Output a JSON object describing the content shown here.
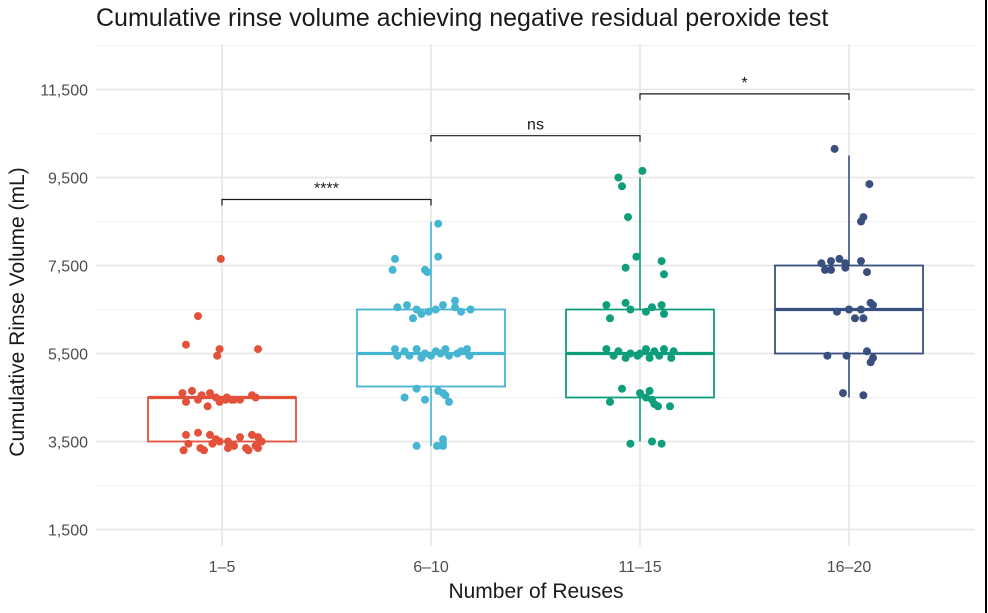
{
  "chart_data": {
    "type": "box",
    "title": "Cumulative rinse volume achieving negative residual peroxide test",
    "xlabel": "Number of Reuses",
    "ylabel": "Cumulative Rinse Volume (mL)",
    "ylim": [
      1200,
      12000
    ],
    "yticks": [
      1500,
      3500,
      5500,
      7500,
      9500,
      11500
    ],
    "ytick_labels": [
      "1,500",
      "3,500",
      "5,500",
      "7,500",
      "9,500",
      "11,500"
    ],
    "categories": [
      "1–5",
      "6–10",
      "11–15",
      "16–20"
    ],
    "grid": true,
    "series": [
      {
        "colour": "#e4513a",
        "box": {
          "q1": 3500,
          "median": 4500,
          "q3": 4500,
          "whisker_low": 3500,
          "whisker_high": 4500
        },
        "points": [
          [
            -0.01,
            7650
          ],
          [
            -0.2,
            6350
          ],
          [
            -0.3,
            5700
          ],
          [
            -0.02,
            5600
          ],
          [
            0.3,
            5600
          ],
          [
            -0.04,
            5450
          ],
          [
            -0.33,
            4600
          ],
          [
            -0.25,
            4650
          ],
          [
            -0.17,
            4550
          ],
          [
            -0.1,
            4600
          ],
          [
            -0.05,
            4500
          ],
          [
            0.03,
            4450
          ],
          [
            0.08,
            4450
          ],
          [
            0.15,
            4450
          ],
          [
            0.25,
            4550
          ],
          [
            0.28,
            4500
          ],
          [
            -0.3,
            4400
          ],
          [
            -0.2,
            4450
          ],
          [
            -0.12,
            4300
          ],
          [
            -0.02,
            4400
          ],
          [
            0.04,
            4500
          ],
          [
            0.1,
            4450
          ],
          [
            -0.3,
            3650
          ],
          [
            -0.2,
            3700
          ],
          [
            -0.1,
            3650
          ],
          [
            -0.05,
            3550
          ],
          [
            0.05,
            3500
          ],
          [
            0.15,
            3600
          ],
          [
            0.25,
            3650
          ],
          [
            0.3,
            3600
          ],
          [
            -0.28,
            3450
          ],
          [
            -0.18,
            3350
          ],
          [
            -0.08,
            3450
          ],
          [
            -0.02,
            3500
          ],
          [
            0.1,
            3400
          ],
          [
            0.2,
            3350
          ],
          [
            0.28,
            3400
          ],
          [
            -0.32,
            3300
          ],
          [
            -0.15,
            3300
          ],
          [
            0.05,
            3350
          ],
          [
            0.22,
            3300
          ],
          [
            0.3,
            3350
          ],
          [
            0.33,
            3500
          ]
        ]
      },
      {
        "colour": "#45b5d1",
        "box": {
          "q1": 4750,
          "median": 5500,
          "q3": 6500,
          "whisker_low": 3400,
          "whisker_high": 8500
        },
        "points": [
          [
            0.06,
            8450
          ],
          [
            -0.3,
            7650
          ],
          [
            0.06,
            7700
          ],
          [
            -0.05,
            7400
          ],
          [
            -0.03,
            7350
          ],
          [
            -0.32,
            7400
          ],
          [
            -0.2,
            6600
          ],
          [
            -0.28,
            6550
          ],
          [
            -0.12,
            6500
          ],
          [
            -0.08,
            6400
          ],
          [
            -0.02,
            6450
          ],
          [
            0.04,
            6500
          ],
          [
            0.1,
            6600
          ],
          [
            0.2,
            6550
          ],
          [
            0.25,
            6450
          ],
          [
            0.33,
            6500
          ],
          [
            -0.15,
            6300
          ],
          [
            0.2,
            6700
          ],
          [
            -0.3,
            5600
          ],
          [
            -0.22,
            5550
          ],
          [
            -0.12,
            5600
          ],
          [
            -0.05,
            5500
          ],
          [
            0.04,
            5550
          ],
          [
            0.12,
            5600
          ],
          [
            0.25,
            5550
          ],
          [
            0.3,
            5600
          ],
          [
            -0.28,
            5450
          ],
          [
            -0.18,
            5450
          ],
          [
            -0.08,
            5400
          ],
          [
            0.0,
            5450
          ],
          [
            0.08,
            5500
          ],
          [
            0.15,
            5450
          ],
          [
            0.22,
            5500
          ],
          [
            0.32,
            5450
          ],
          [
            -0.12,
            4700
          ],
          [
            0.06,
            4650
          ],
          [
            0.1,
            4600
          ],
          [
            -0.22,
            4500
          ],
          [
            0.12,
            4550
          ],
          [
            0.15,
            4400
          ],
          [
            -0.05,
            4450
          ],
          [
            0.1,
            3550
          ],
          [
            0.1,
            3450
          ],
          [
            0.1,
            3400
          ],
          [
            0.05,
            3400
          ],
          [
            -0.12,
            3400
          ]
        ]
      },
      {
        "colour": "#0e9e7b",
        "box": {
          "q1": 4500,
          "median": 5500,
          "q3": 6500,
          "whisker_low": 3500,
          "whisker_high": 9500
        },
        "points": [
          [
            0.02,
            9650
          ],
          [
            -0.18,
            9500
          ],
          [
            -0.15,
            9300
          ],
          [
            -0.1,
            8600
          ],
          [
            -0.03,
            7700
          ],
          [
            -0.12,
            7450
          ],
          [
            0.18,
            7600
          ],
          [
            0.2,
            7300
          ],
          [
            -0.28,
            6600
          ],
          [
            -0.12,
            6650
          ],
          [
            -0.08,
            6500
          ],
          [
            0.1,
            6550
          ],
          [
            0.18,
            6600
          ],
          [
            0.2,
            6400
          ],
          [
            -0.25,
            6300
          ],
          [
            0.05,
            6450
          ],
          [
            -0.28,
            5600
          ],
          [
            -0.18,
            5550
          ],
          [
            -0.08,
            5500
          ],
          [
            0.0,
            5500
          ],
          [
            0.05,
            5600
          ],
          [
            0.12,
            5550
          ],
          [
            0.2,
            5600
          ],
          [
            0.28,
            5550
          ],
          [
            -0.22,
            5450
          ],
          [
            -0.12,
            5400
          ],
          [
            -0.02,
            5450
          ],
          [
            0.08,
            5400
          ],
          [
            0.16,
            5450
          ],
          [
            0.26,
            5400
          ],
          [
            -0.15,
            4700
          ],
          [
            0.0,
            4600
          ],
          [
            0.05,
            4500
          ],
          [
            0.1,
            4450
          ],
          [
            -0.25,
            4400
          ],
          [
            0.12,
            4350
          ],
          [
            0.25,
            4300
          ],
          [
            0.08,
            4650
          ],
          [
            -0.08,
            3450
          ],
          [
            0.18,
            3450
          ],
          [
            0.1,
            3500
          ],
          [
            0.15,
            4300
          ]
        ]
      },
      {
        "colour": "#39507f",
        "box": {
          "q1": 5500,
          "median": 6500,
          "q3": 7500,
          "whisker_low": 4500,
          "whisker_high": 10000
        },
        "points": [
          [
            -0.12,
            10150
          ],
          [
            0.17,
            9350
          ],
          [
            0.12,
            8600
          ],
          [
            0.1,
            8500
          ],
          [
            -0.15,
            7600
          ],
          [
            -0.08,
            7650
          ],
          [
            -0.03,
            7550
          ],
          [
            0.1,
            7600
          ],
          [
            -0.15,
            7400
          ],
          [
            -0.03,
            7450
          ],
          [
            0.15,
            7350
          ],
          [
            -0.23,
            7550
          ],
          [
            -0.2,
            7400
          ],
          [
            0.18,
            6650
          ],
          [
            0.2,
            6600
          ],
          [
            0.1,
            6500
          ],
          [
            0.0,
            6500
          ],
          [
            -0.1,
            6450
          ],
          [
            0.05,
            6300
          ],
          [
            0.12,
            6300
          ],
          [
            -0.18,
            5450
          ],
          [
            -0.02,
            5450
          ],
          [
            0.15,
            5550
          ],
          [
            0.2,
            5400
          ],
          [
            0.18,
            5300
          ],
          [
            -0.05,
            4600
          ],
          [
            0.12,
            4550
          ]
        ]
      }
    ],
    "brackets": [
      {
        "from": 0,
        "to": 1,
        "y": 9000,
        "label": "****"
      },
      {
        "from": 1,
        "to": 2,
        "y": 10450,
        "label": "ns"
      },
      {
        "from": 2,
        "to": 3,
        "y": 11400,
        "label": "*"
      }
    ]
  }
}
